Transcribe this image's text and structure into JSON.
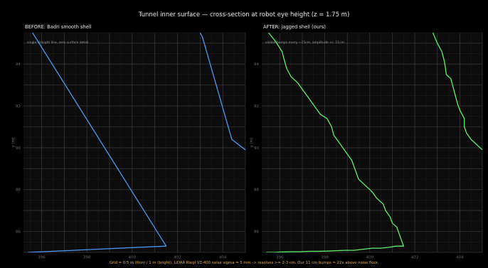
{
  "figure": {
    "title": "Tunnel inner surface — cross-section at robot eye height (z = 1.75 m)",
    "footer": "Grid = 0.5 m (thin) / 1 m (bright).   LiDAR Riegl VZ-400 noise sigma = 5 mm  ->  resolves >= 2-3 cm.   Our 11 cm bumps = 22x above noise floor.",
    "colors": {
      "background": "#000000",
      "plot_bg": "#0c0c0c",
      "before": "#4d97ee",
      "after": "#5ef06a",
      "footer": "#e7b54a",
      "grid_major": "#3a3a3a",
      "grid_minor": "#1c1c1c"
    }
  },
  "chart_data": [
    {
      "type": "line",
      "title": "BEFORE: Badri smooth shell",
      "annotation": "single straight line, zero surface detail",
      "xlabel": "",
      "ylabel": "y (m)",
      "xlim": [
        395.2,
        405.0
      ],
      "ylim": [
        85.0,
        95.5
      ],
      "xticks": [
        396,
        398,
        400,
        402,
        404
      ],
      "yticks": [
        86,
        88,
        90,
        92,
        94
      ],
      "grid": true,
      "series": [
        {
          "color": "#4d97ee",
          "points": [
            [
              395.6,
              95.5
            ],
            [
              401.5,
              85.3
            ],
            [
              395.4,
              85.0
            ]
          ]
        },
        {
          "color": "#4d97ee",
          "points": [
            [
              403.0,
              95.5
            ],
            [
              403.1,
              95.3
            ],
            [
              404.4,
              90.4
            ],
            [
              405.0,
              89.9
            ]
          ]
        }
      ]
    },
    {
      "type": "line",
      "title": "AFTER: jagged shell (ours)",
      "annotation": "visible bumps every ~15cm,  amplitude +/- 11cm",
      "xlabel": "",
      "ylabel": "y (m)",
      "xlim": [
        395.2,
        405.0
      ],
      "ylim": [
        85.0,
        95.5
      ],
      "xticks": [
        396,
        398,
        400,
        402,
        404
      ],
      "yticks": [
        86,
        88,
        90,
        92,
        94
      ],
      "grid": true,
      "series": [
        {
          "color": "#5ef06a",
          "points": [
            [
              395.5,
              95.5
            ],
            [
              395.8,
              95.1
            ],
            [
              396.1,
              94.6
            ],
            [
              396.2,
              94.2
            ],
            [
              396.3,
              93.8
            ],
            [
              396.5,
              93.4
            ],
            [
              396.8,
              93.1
            ],
            [
              397.0,
              92.8
            ],
            [
              397.2,
              92.5
            ],
            [
              397.4,
              92.2
            ],
            [
              397.6,
              91.9
            ],
            [
              397.8,
              91.6
            ],
            [
              398.1,
              91.4
            ],
            [
              398.3,
              91.0
            ],
            [
              398.4,
              90.6
            ],
            [
              398.6,
              90.3
            ],
            [
              398.8,
              90.0
            ],
            [
              399.0,
              89.7
            ],
            [
              399.2,
              89.4
            ],
            [
              399.3,
              89.1
            ],
            [
              399.4,
              88.8
            ],
            [
              399.5,
              88.5
            ],
            [
              399.8,
              88.2
            ],
            [
              400.1,
              87.9
            ],
            [
              400.3,
              87.6
            ],
            [
              400.6,
              87.3
            ],
            [
              400.7,
              87.0
            ],
            [
              400.9,
              86.7
            ],
            [
              401.0,
              86.4
            ],
            [
              401.2,
              86.2
            ],
            [
              401.3,
              85.9
            ],
            [
              401.4,
              85.6
            ],
            [
              401.5,
              85.3
            ],
            [
              401.2,
              85.3
            ],
            [
              400.9,
              85.25
            ],
            [
              400.5,
              85.2
            ],
            [
              400.1,
              85.2
            ],
            [
              399.7,
              85.15
            ],
            [
              399.3,
              85.1
            ],
            [
              398.9,
              85.1
            ],
            [
              398.5,
              85.08
            ],
            [
              398.1,
              85.06
            ],
            [
              397.7,
              85.05
            ],
            [
              397.3,
              85.05
            ],
            [
              396.9,
              85.03
            ],
            [
              396.5,
              85.03
            ],
            [
              396.1,
              85.02
            ],
            [
              395.7,
              85.0
            ],
            [
              395.4,
              85.0
            ]
          ]
        },
        {
          "color": "#5ef06a",
          "points": [
            [
              402.8,
              95.5
            ],
            [
              403.0,
              95.0
            ],
            [
              403.2,
              94.6
            ],
            [
              403.3,
              94.2
            ],
            [
              403.35,
              93.9
            ],
            [
              403.4,
              93.5
            ],
            [
              403.6,
              93.3
            ],
            [
              403.7,
              92.9
            ],
            [
              403.8,
              92.5
            ],
            [
              403.9,
              92.1
            ],
            [
              404.0,
              91.8
            ],
            [
              404.2,
              91.4
            ],
            [
              404.2,
              91.0
            ],
            [
              404.3,
              90.7
            ],
            [
              404.5,
              90.4
            ],
            [
              404.8,
              90.1
            ],
            [
              405.0,
              89.9
            ]
          ]
        }
      ]
    }
  ]
}
